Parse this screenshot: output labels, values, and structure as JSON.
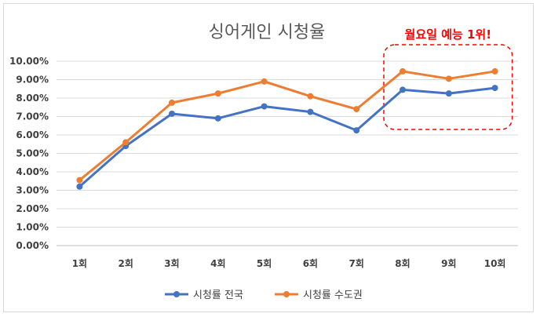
{
  "chart_data": {
    "type": "line",
    "title": "싱어게인 시청율",
    "categories": [
      "1회",
      "2회",
      "3회",
      "4회",
      "5회",
      "6회",
      "7회",
      "8회",
      "9회",
      "10회"
    ],
    "y_tick_labels": [
      "0.00%",
      "1.00%",
      "2.00%",
      "3.00%",
      "4.00%",
      "5.00%",
      "6.00%",
      "7.00%",
      "8.00%",
      "9.00%",
      "10.00%"
    ],
    "ylim": [
      0,
      10
    ],
    "grid": true,
    "legend": "bottom",
    "series": [
      {
        "name": "시청률 전국",
        "color": "#4472c4",
        "values": [
          3.2,
          5.4,
          7.15,
          6.9,
          7.55,
          7.25,
          6.25,
          8.45,
          8.25,
          8.55
        ]
      },
      {
        "name": "시청률 수도권",
        "color": "#ed7d31",
        "values": [
          3.55,
          5.6,
          7.75,
          8.25,
          8.9,
          8.1,
          7.4,
          9.45,
          9.05,
          9.45
        ]
      }
    ],
    "annotation": {
      "text": "월요일 예능 1위!",
      "color": "#ff0000",
      "categories": [
        "8회",
        "10회"
      ]
    }
  }
}
